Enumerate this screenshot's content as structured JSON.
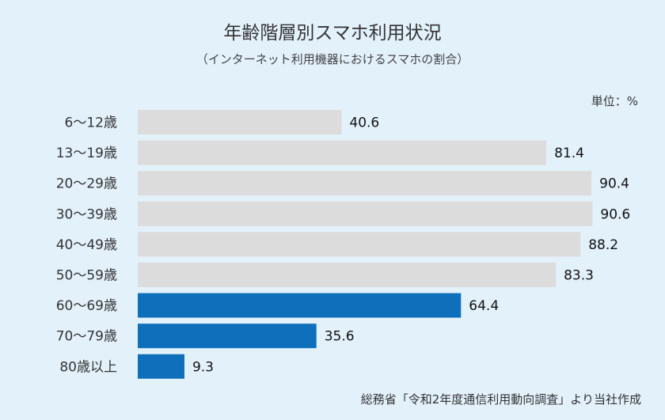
{
  "chart_data": {
    "type": "bar",
    "orientation": "horizontal",
    "title": "年齢階層別スマホ利用状況",
    "subtitle": "（インターネット利用機器におけるスマホの割合）",
    "unit_label": "単位：%",
    "source": "総務省「令和2年度通信利用動向調査」より当社作成",
    "categories": [
      "6～12歳",
      "13～19歳",
      "20～29歳",
      "30～39歳",
      "40～49歳",
      "50～59歳",
      "60～69歳",
      "70～79歳",
      "80歳以上"
    ],
    "values": [
      40.6,
      81.4,
      90.4,
      90.6,
      88.2,
      83.3,
      64.4,
      35.6,
      9.3
    ],
    "highlighted": [
      false,
      false,
      false,
      false,
      false,
      false,
      true,
      true,
      true
    ],
    "xlim": [
      0,
      100
    ],
    "grid": false,
    "colors": {
      "normal": "#dcdcdc",
      "highlight": "#0f6fbb",
      "background": "#e3f1fb"
    }
  }
}
